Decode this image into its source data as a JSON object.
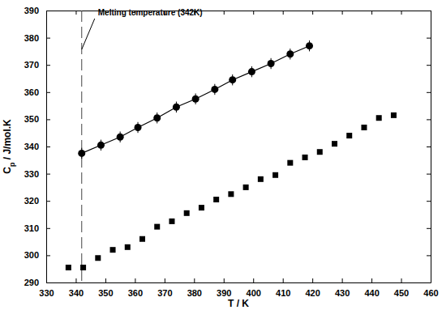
{
  "chart_data": {
    "type": "scatter",
    "x_label": "T / K",
    "y_label": "Cp / J/mol.K",
    "xlim": [
      330,
      460
    ],
    "ylim": [
      290,
      390
    ],
    "xticks": [
      330,
      340,
      350,
      360,
      370,
      380,
      390,
      400,
      410,
      420,
      430,
      440,
      450,
      460
    ],
    "yticks": [
      290,
      300,
      310,
      320,
      330,
      340,
      350,
      360,
      370,
      380,
      390
    ],
    "grid": false,
    "annotations": [
      {
        "text": "Melting temperature (342K)",
        "x": 342
      }
    ],
    "series": [
      {
        "x": [
          342,
          348.5,
          355,
          361,
          367.5,
          374,
          380.5,
          387,
          393,
          399.5,
          406,
          412.5,
          419
        ],
        "values": [
          337.5,
          340.5,
          343.5,
          347,
          350.5,
          354.5,
          357.5,
          361,
          364.5,
          367.5,
          370.5,
          374,
          377
        ],
        "errors": [
          2,
          2,
          2,
          2,
          2,
          2,
          2,
          2,
          2,
          2,
          2,
          2,
          2
        ],
        "color": "#000000",
        "marker": "circle",
        "line_style": "solid"
      },
      {
        "x": [
          337.5,
          342.5,
          347.5,
          352.5,
          357.5,
          362.5,
          367.5,
          372.5,
          377.5,
          382.5,
          387.5,
          392.5,
          397.5,
          402.5,
          407.5,
          412.5,
          417.5,
          422.5,
          427.5,
          432.5,
          437.5,
          442.5,
          447.5
        ],
        "values": [
          295.5,
          295.5,
          299,
          302,
          303,
          306,
          310.5,
          312.5,
          315.5,
          317.5,
          320.5,
          322.5,
          325,
          328,
          329.5,
          334,
          336,
          338,
          341,
          344,
          347,
          350.5,
          351.5
        ],
        "color": "#000000",
        "marker": "square"
      }
    ]
  }
}
